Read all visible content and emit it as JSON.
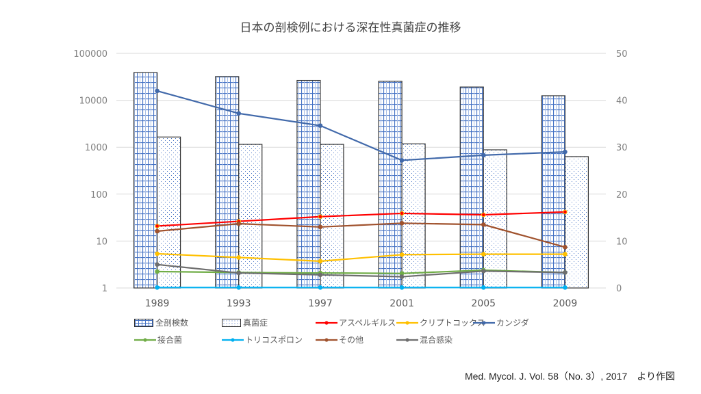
{
  "chart_data": {
    "type": "bar",
    "title": "日本の剖検例における深在性真菌症の推移",
    "categories": [
      "1989",
      "1993",
      "1997",
      "2001",
      "2005",
      "2009"
    ],
    "left_axis": {
      "scale": "log",
      "range": [
        1,
        100000
      ],
      "ticks": [
        "1",
        "10",
        "100",
        "1000",
        "10000",
        "100000"
      ]
    },
    "right_axis": {
      "scale": "linear",
      "range": [
        0,
        50
      ],
      "ticks": [
        "0",
        "10",
        "20",
        "30",
        "40",
        "50"
      ]
    },
    "grid": true,
    "legend_position": "bottom",
    "bar_series": [
      {
        "name": "全剖検数",
        "axis": "left",
        "pattern": "grid",
        "color": "#4472C4",
        "values": [
          39000,
          32000,
          26500,
          25500,
          19200,
          12500
        ]
      },
      {
        "name": "真菌症",
        "axis": "left",
        "pattern": "dots",
        "color": "#4472C4",
        "values": [
          1650,
          1150,
          1150,
          1180,
          880,
          630
        ]
      }
    ],
    "line_series": [
      {
        "name": "アスペルギルス",
        "axis": "right",
        "color": "#FF0000",
        "values": [
          13.2,
          14.2,
          15.2,
          15.9,
          15.6,
          16.2
        ]
      },
      {
        "name": "クリプトコックス",
        "axis": "right",
        "color": "#FFC000",
        "values": [
          7.3,
          6.5,
          5.7,
          7.1,
          7.2,
          7.2
        ]
      },
      {
        "name": "カンジダ",
        "axis": "right",
        "color": "#4169AA",
        "values": [
          42.0,
          37.2,
          34.6,
          27.2,
          28.3,
          29.0
        ]
      },
      {
        "name": "接合菌",
        "axis": "right",
        "color": "#70AD47",
        "values": [
          3.5,
          3.3,
          3.2,
          3.1,
          3.8,
          3.3
        ]
      },
      {
        "name": "トリコスポロン",
        "axis": "right",
        "color": "#00B0F0",
        "values": [
          0.1,
          0.1,
          0.1,
          0.1,
          0.1,
          0.1
        ]
      },
      {
        "name": "その他",
        "axis": "right",
        "color": "#A0522D",
        "values": [
          12.1,
          13.7,
          13.0,
          13.8,
          13.5,
          8.7
        ]
      },
      {
        "name": "混合感染",
        "axis": "right",
        "color": "#6E6E6E",
        "values": [
          5.0,
          3.2,
          2.8,
          2.4,
          3.6,
          3.3
        ]
      }
    ]
  },
  "source": "Med. Mycol. J. Vol. 58（No. 3）, 2017　より作図"
}
